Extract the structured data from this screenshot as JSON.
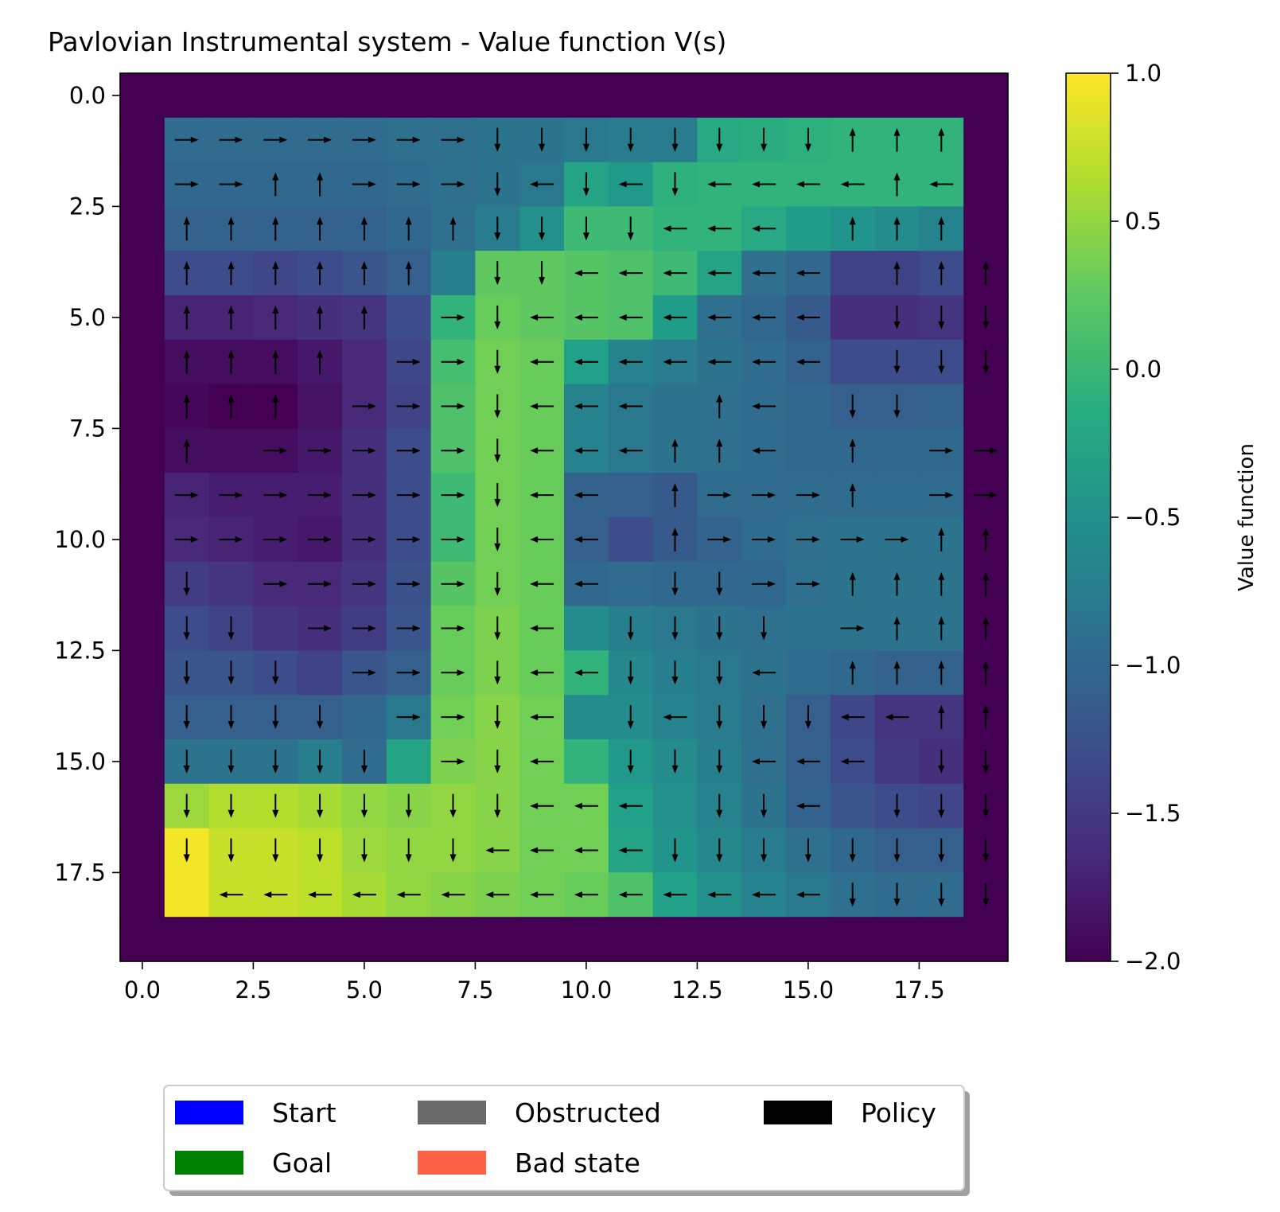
{
  "chart_data": {
    "type": "heatmap",
    "title": "Pavlovian Instrumental system - Value function V(s)",
    "xlabel": "",
    "ylabel": "",
    "grid": false,
    "x_ticks": [
      "0.0",
      "2.5",
      "5.0",
      "7.5",
      "10.0",
      "12.5",
      "15.0",
      "17.5"
    ],
    "x_tick_values": [
      0,
      2.5,
      5,
      7.5,
      10,
      12.5,
      15,
      17.5
    ],
    "y_ticks": [
      "0.0",
      "2.5",
      "5.0",
      "7.5",
      "10.0",
      "12.5",
      "15.0",
      "17.5"
    ],
    "y_tick_values": [
      0,
      2.5,
      5,
      7.5,
      10,
      12.5,
      15,
      17.5
    ],
    "xlim": [
      -0.5,
      19.5
    ],
    "ylim": [
      19.5,
      -0.5
    ],
    "rows": 20,
    "cols": 20,
    "colormap": "viridis",
    "vmin": -2.0,
    "vmax": 1.0,
    "colorbar": {
      "label": "Value function",
      "ticks": [
        "1.0",
        "0.5",
        "0.0",
        "−0.5",
        "−1.0",
        "−1.5",
        "−2.0"
      ],
      "tick_values": [
        1.0,
        0.5,
        0.0,
        -0.5,
        -1.0,
        -1.5,
        -2.0
      ]
    },
    "values": [
      [
        -2.0,
        -2.0,
        -2.0,
        -2.0,
        -2.0,
        -2.0,
        -2.0,
        -2.0,
        -2.0,
        -2.0,
        -2.0,
        -2.0,
        -2.0,
        -2.0,
        -2.0,
        -2.0,
        -2.0,
        -2.0,
        -2.0,
        -2.0
      ],
      [
        -2.0,
        -0.95,
        -0.95,
        -0.95,
        -0.95,
        -0.95,
        -0.9,
        -0.9,
        -0.85,
        -0.85,
        -0.8,
        -0.75,
        -0.75,
        -0.2,
        -0.15,
        -0.1,
        -0.05,
        -0.05,
        -0.05,
        -2.0
      ],
      [
        -2.0,
        -1.0,
        -1.0,
        -1.0,
        -1.0,
        -1.0,
        -0.95,
        -0.9,
        -0.85,
        -0.8,
        -0.25,
        -0.4,
        -0.1,
        -0.05,
        -0.05,
        -0.05,
        -0.05,
        -0.05,
        -0.05,
        -2.0
      ],
      [
        -2.0,
        -1.05,
        -1.05,
        -1.05,
        -1.05,
        -1.05,
        -1.0,
        -0.9,
        -0.75,
        -0.5,
        0.05,
        0.05,
        -0.05,
        -0.05,
        -0.2,
        -0.35,
        -0.45,
        -0.55,
        -0.65,
        -2.0
      ],
      [
        -2.0,
        -1.3,
        -1.3,
        -1.35,
        -1.3,
        -1.2,
        -1.1,
        -0.7,
        0.25,
        0.25,
        0.2,
        0.15,
        0.05,
        -0.25,
        -0.9,
        -1.0,
        -1.4,
        -1.4,
        -1.3,
        -2.0
      ],
      [
        -2.0,
        -1.7,
        -1.7,
        -1.65,
        -1.6,
        -1.55,
        -1.3,
        -0.05,
        0.3,
        0.25,
        0.2,
        0.15,
        -0.35,
        -0.9,
        -1.0,
        -1.15,
        -1.6,
        -1.6,
        -1.55,
        -2.0
      ],
      [
        -2.0,
        -1.9,
        -1.9,
        -1.9,
        -1.8,
        -1.65,
        -1.35,
        0.1,
        0.35,
        0.3,
        -0.3,
        -0.65,
        -0.75,
        -0.85,
        -0.95,
        -1.05,
        -1.3,
        -1.3,
        -1.3,
        -2.0
      ],
      [
        -2.0,
        -1.95,
        -2.0,
        -2.0,
        -1.85,
        -1.65,
        -1.4,
        0.15,
        0.35,
        0.3,
        -0.65,
        -0.8,
        -0.85,
        -0.9,
        -0.95,
        -1.0,
        -1.1,
        -1.1,
        -1.05,
        -2.0
      ],
      [
        -2.0,
        -1.9,
        -1.9,
        -1.9,
        -1.8,
        -1.6,
        -1.3,
        0.15,
        0.35,
        0.3,
        -0.65,
        -0.8,
        -0.85,
        -0.9,
        -0.95,
        -1.0,
        -1.0,
        -1.0,
        -1.0,
        -2.0
      ],
      [
        -2.0,
        -1.7,
        -1.75,
        -1.75,
        -1.75,
        -1.6,
        -1.3,
        0.05,
        0.35,
        0.3,
        -1.05,
        -1.1,
        -1.15,
        -0.95,
        -0.95,
        -0.95,
        -0.95,
        -0.95,
        -0.95,
        -2.0
      ],
      [
        -2.0,
        -1.65,
        -1.7,
        -1.75,
        -1.8,
        -1.6,
        -1.3,
        0.05,
        0.35,
        0.3,
        -1.1,
        -1.3,
        -1.15,
        -1.05,
        -0.95,
        -0.9,
        -0.85,
        -0.85,
        -0.85,
        -2.0
      ],
      [
        -2.0,
        -1.45,
        -1.55,
        -1.65,
        -1.65,
        -1.55,
        -1.25,
        0.2,
        0.35,
        0.3,
        -1.0,
        -0.95,
        -1.0,
        -1.0,
        -1.0,
        -0.9,
        -0.85,
        -0.85,
        -0.85,
        -2.0
      ],
      [
        -2.0,
        -1.3,
        -1.4,
        -1.55,
        -1.6,
        -1.45,
        -1.2,
        0.3,
        0.4,
        0.3,
        -0.55,
        -0.7,
        -0.8,
        -0.85,
        -0.9,
        -0.85,
        -0.85,
        -0.85,
        -0.85,
        -2.0
      ],
      [
        -2.0,
        -1.2,
        -1.2,
        -1.3,
        -1.4,
        -1.2,
        -1.1,
        0.3,
        0.4,
        0.3,
        -0.05,
        -0.6,
        -0.7,
        -0.8,
        -0.85,
        -0.95,
        -1.0,
        -1.05,
        -1.05,
        -2.0
      ],
      [
        -2.0,
        -1.1,
        -1.1,
        -1.1,
        -1.1,
        -1.0,
        -0.8,
        0.35,
        0.45,
        0.35,
        -0.55,
        -0.55,
        -0.65,
        -0.75,
        -0.9,
        -1.1,
        -1.35,
        -1.55,
        -1.55,
        -2.0
      ],
      [
        -2.0,
        -0.85,
        -0.85,
        -0.85,
        -0.7,
        -0.95,
        -0.25,
        0.4,
        0.45,
        0.35,
        -0.05,
        -0.4,
        -0.55,
        -0.7,
        -0.9,
        -1.1,
        -1.3,
        -1.5,
        -1.6,
        -2.0
      ],
      [
        -2.0,
        0.55,
        0.65,
        0.65,
        0.6,
        0.5,
        0.45,
        0.5,
        0.45,
        0.35,
        0.35,
        -0.3,
        -0.5,
        -0.65,
        -0.85,
        -1.05,
        -1.2,
        -1.3,
        -1.35,
        -2.0
      ],
      [
        -2.0,
        0.95,
        0.75,
        0.75,
        0.7,
        0.55,
        0.5,
        0.5,
        0.45,
        0.35,
        0.35,
        -0.25,
        -0.45,
        -0.6,
        -0.75,
        -0.9,
        -1.0,
        -1.1,
        -1.1,
        -2.0
      ],
      [
        -2.0,
        0.95,
        0.75,
        0.75,
        0.7,
        0.6,
        0.5,
        0.45,
        0.4,
        0.35,
        0.3,
        0.15,
        -0.3,
        -0.5,
        -0.65,
        -0.8,
        -0.9,
        -0.95,
        -0.95,
        -2.0
      ],
      [
        -2.0,
        -2.0,
        -2.0,
        -2.0,
        -2.0,
        -2.0,
        -2.0,
        -2.0,
        -2.0,
        -2.0,
        -2.0,
        -2.0,
        -2.0,
        -2.0,
        -2.0,
        -2.0,
        -2.0,
        -2.0,
        -2.0,
        -2.0
      ]
    ],
    "policy_legend": "U = up, D = down, L = left, R = right, . = none",
    "policy": [
      "....................",
      ".RRRRRRRDDDDDDDDUUU.",
      ".RRUURRRDLDLDLLLLUL.",
      ".UUUUUUUDDDDLLL.UUU.",
      ".UUUUUU.DDLLLLLL.UUU",
      ".UUUUU.RDLLLLLLL.DDD",
      ".UUUU.RRDLLLLLLL.DDD",
      ".UUU.RRRDLLL.UL.DD..",
      ".U.RRRRRDLLLUUL.U.RR",
      ".RRRRRRRDLL.URRRU.RR",
      ".RRRRRRRDLL.URRRRRUU",
      ".D.RRRRRDLL.DDRRUUUU",
      ".DD.RRRRDL.DDDD.RUUU",
      ".DDD.RRRDLLDDDL.UUUU",
      ".DDDD.RRDL.DLDDDLLUU",
      ".DDDDD.RDL.DDDLLL.DD",
      ".DDDDDDDDLLL.DDL.DDD",
      ".DDDDDDDLLLLDDDDDDDD",
      "..LLLLLLLLLLLLLLDDDD",
      "...................."
    ],
    "legend": [
      {
        "label": "Start",
        "color": "#0000ff"
      },
      {
        "label": "Goal",
        "color": "#008000"
      },
      {
        "label": "Obstructed",
        "color": "#696969"
      },
      {
        "label": "Bad state",
        "color": "#ff6347"
      },
      {
        "label": "Policy",
        "color": "#000000"
      }
    ],
    "legend_position": "bottom-center, outside plot"
  }
}
